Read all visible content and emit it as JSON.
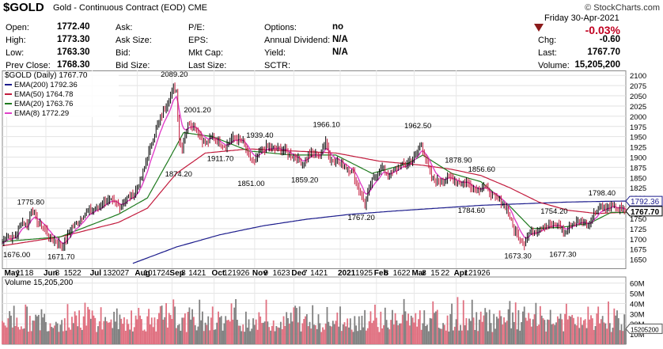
{
  "header": {
    "symbol": "$GOLD",
    "description": "Gold - Continuous Contract (EOD)",
    "exchange": "CME",
    "watermark": "© StockCharts.com",
    "quote_left": [
      {
        "label": "Open:",
        "value": "1772.40"
      },
      {
        "label": "High:",
        "value": "1773.30"
      },
      {
        "label": "Low:",
        "value": "1763.30"
      },
      {
        "label": "Prev Close:",
        "value": "1768.30"
      }
    ],
    "quote_mid": [
      {
        "label": "Ask:",
        "value": ""
      },
      {
        "label": "Ask Size:",
        "value": ""
      },
      {
        "label": "Bid:",
        "value": ""
      },
      {
        "label": "Bid Size:",
        "value": ""
      }
    ],
    "quote_mid2": [
      {
        "label": "P/E:",
        "value": ""
      },
      {
        "label": "EPS:",
        "value": ""
      },
      {
        "label": "Mkt Cap:",
        "value": ""
      },
      {
        "label": "Last Size:",
        "value": ""
      }
    ],
    "quote_right": [
      {
        "label": "Options:",
        "value": "no"
      },
      {
        "label": "Annual Dividend:",
        "value": "N/A"
      },
      {
        "label": "Yield:",
        "value": "N/A"
      },
      {
        "label": "SCTR:",
        "value": ""
      }
    ],
    "date": "Friday   30-Apr-2021",
    "change_pct": "-0.03%",
    "stats": [
      {
        "label": "Chg:",
        "value": "-0.60"
      },
      {
        "label": "Last:",
        "value": "1767.70"
      },
      {
        "label": "Volume:",
        "value": "15,205,200"
      }
    ],
    "colors": {
      "down": "#c00020",
      "down_arrow": "#8b1a1a"
    }
  },
  "chart_data": {
    "type": "line",
    "price_panel": {
      "title": "$GOLD (Daily) 1767.70",
      "legend": [
        {
          "name": "EMA(200) 1792.36",
          "color": "#1c1c8c"
        },
        {
          "name": "EMA(50) 1764.78",
          "color": "#c21a3c"
        },
        {
          "name": "EMA(20) 1763.76",
          "color": "#1e7a1e"
        },
        {
          "name": "EMA(8) 1772.29",
          "color": "#e040c8"
        }
      ],
      "ylim": [
        1628,
        2112
      ],
      "yticks": [
        "2100",
        "2075",
        "2050",
        "2025",
        "2000",
        "1975",
        "1950",
        "1925",
        "1900",
        "1875",
        "1850",
        "1825",
        "1800",
        "1775",
        "1750",
        "1725",
        "1700",
        "1675",
        "1650"
      ],
      "last_value_tags": [
        {
          "text": "1792.36",
          "value": 1792.36,
          "color": "#1c1c8c"
        },
        {
          "text": "1767.70",
          "value": 1767.7,
          "color": "#000000"
        }
      ],
      "annotations": [
        {
          "text": "1676.00",
          "x": 0,
          "value": 1676.0
        },
        {
          "text": "1775.80",
          "x": 20,
          "value": 1775.8
        },
        {
          "text": "1671.70",
          "x": 41,
          "value": 1671.7
        },
        {
          "text": "2089.20",
          "x": 119,
          "value": 2089.2
        },
        {
          "text": "1874.20",
          "x": 122,
          "value": 1874.2
        },
        {
          "text": "2001.20",
          "x": 135,
          "value": 2001.2
        },
        {
          "text": "1911.70",
          "x": 151,
          "value": 1911.7
        },
        {
          "text": "1939.40",
          "x": 178,
          "value": 1939.4
        },
        {
          "text": "1851.00",
          "x": 172,
          "value": 1851.0
        },
        {
          "text": "1859.20",
          "x": 209,
          "value": 1859.2
        },
        {
          "text": "1966.10",
          "x": 224,
          "value": 1966.1
        },
        {
          "text": "1767.20",
          "x": 248,
          "value": 1767.2
        },
        {
          "text": "1962.50",
          "x": 287,
          "value": 1962.5
        },
        {
          "text": "1878.90",
          "x": 315,
          "value": 1878.9
        },
        {
          "text": "1856.60",
          "x": 331,
          "value": 1856.6
        },
        {
          "text": "1784.60",
          "x": 324,
          "value": 1784.6
        },
        {
          "text": "1673.30",
          "x": 356,
          "value": 1673.3
        },
        {
          "text": "1754.20",
          "x": 381,
          "value": 1754.2
        },
        {
          "text": "1677.30",
          "x": 387,
          "value": 1677.3
        },
        {
          "text": "1798.40",
          "x": 414,
          "value": 1798.4
        }
      ],
      "anchors": [
        [
          0,
          1690
        ],
        [
          3,
          1710
        ],
        [
          7,
          1700
        ],
        [
          10,
          1712
        ],
        [
          13,
          1745
        ],
        [
          17,
          1730
        ],
        [
          20,
          1775
        ],
        [
          23,
          1750
        ],
        [
          26,
          1735
        ],
        [
          30,
          1720
        ],
        [
          33,
          1700
        ],
        [
          37,
          1695
        ],
        [
          41,
          1680
        ],
        [
          44,
          1700
        ],
        [
          48,
          1730
        ],
        [
          52,
          1740
        ],
        [
          56,
          1760
        ],
        [
          61,
          1770
        ],
        [
          66,
          1775
        ],
        [
          71,
          1795
        ],
        [
          76,
          1790
        ],
        [
          81,
          1780
        ],
        [
          86,
          1800
        ],
        [
          91,
          1810
        ],
        [
          96,
          1850
        ],
        [
          100,
          1900
        ],
        [
          104,
          1950
        ],
        [
          108,
          1985
        ],
        [
          112,
          2020
        ],
        [
          115,
          2040
        ],
        [
          118,
          2070
        ],
        [
          120,
          2062
        ],
        [
          122,
          1940
        ],
        [
          124,
          1925
        ],
        [
          126,
          1960
        ],
        [
          129,
          1985
        ],
        [
          133,
          1975
        ],
        [
          137,
          1945
        ],
        [
          141,
          1935
        ],
        [
          145,
          1950
        ],
        [
          150,
          1935
        ],
        [
          154,
          1925
        ],
        [
          158,
          1945
        ],
        [
          162,
          1945
        ],
        [
          166,
          1935
        ],
        [
          170,
          1900
        ],
        [
          174,
          1885
        ],
        [
          178,
          1915
        ],
        [
          182,
          1925
        ],
        [
          186,
          1920
        ],
        [
          190,
          1920
        ],
        [
          195,
          1915
        ],
        [
          199,
          1905
        ],
        [
          203,
          1895
        ],
        [
          207,
          1885
        ],
        [
          211,
          1905
        ],
        [
          215,
          1910
        ],
        [
          219,
          1900
        ],
        [
          223,
          1945
        ],
        [
          226,
          1890
        ],
        [
          230,
          1895
        ],
        [
          234,
          1880
        ],
        [
          238,
          1875
        ],
        [
          242,
          1860
        ],
        [
          246,
          1820
        ],
        [
          250,
          1785
        ],
        [
          254,
          1835
        ],
        [
          258,
          1860
        ],
        [
          262,
          1875
        ],
        [
          266,
          1855
        ],
        [
          270,
          1865
        ],
        [
          274,
          1880
        ],
        [
          278,
          1880
        ],
        [
          282,
          1895
        ],
        [
          286,
          1910
        ],
        [
          289,
          1935
        ],
        [
          292,
          1895
        ],
        [
          296,
          1850
        ],
        [
          300,
          1840
        ],
        [
          304,
          1845
        ],
        [
          308,
          1850
        ],
        [
          312,
          1845
        ],
        [
          316,
          1835
        ],
        [
          320,
          1840
        ],
        [
          324,
          1825
        ],
        [
          328,
          1820
        ],
        [
          332,
          1830
        ],
        [
          336,
          1810
        ],
        [
          340,
          1800
        ],
        [
          344,
          1790
        ],
        [
          348,
          1775
        ],
        [
          352,
          1730
        ],
        [
          356,
          1705
        ],
        [
          360,
          1690
        ],
        [
          364,
          1720
        ],
        [
          368,
          1720
        ],
        [
          372,
          1730
        ],
        [
          376,
          1735
        ],
        [
          380,
          1730
        ],
        [
          384,
          1735
        ],
        [
          388,
          1715
        ],
        [
          392,
          1735
        ],
        [
          396,
          1740
        ],
        [
          400,
          1745
        ],
        [
          404,
          1735
        ],
        [
          408,
          1760
        ],
        [
          412,
          1780
        ],
        [
          416,
          1775
        ],
        [
          420,
          1780
        ],
        [
          424,
          1775
        ],
        [
          428,
          1770
        ],
        [
          430,
          1768
        ]
      ],
      "ema_series": [
        {
          "name": "EMA(200)",
          "points": [
            [
              90,
              1640
            ],
            [
              120,
              1680
            ],
            [
              150,
              1710
            ],
            [
              180,
              1732
            ],
            [
              210,
              1748
            ],
            [
              240,
              1760
            ],
            [
              270,
              1768
            ],
            [
              300,
              1775
            ],
            [
              330,
              1782
            ],
            [
              360,
              1786
            ],
            [
              390,
              1790
            ],
            [
              420,
              1792
            ],
            [
              430,
              1792.4
            ]
          ]
        },
        {
          "name": "EMA(50)",
          "points": [
            [
              0,
              1683
            ],
            [
              40,
              1705
            ],
            [
              80,
              1740
            ],
            [
              100,
              1775
            ],
            [
              120,
              1860
            ],
            [
              140,
              1910
            ],
            [
              170,
              1920
            ],
            [
              200,
              1915
            ],
            [
              230,
              1910
            ],
            [
              260,
              1890
            ],
            [
              290,
              1880
            ],
            [
              310,
              1870
            ],
            [
              330,
              1855
            ],
            [
              350,
              1825
            ],
            [
              370,
              1790
            ],
            [
              390,
              1770
            ],
            [
              410,
              1762
            ],
            [
              430,
              1765
            ]
          ]
        },
        {
          "name": "EMA(20)",
          "points": [
            [
              0,
              1693
            ],
            [
              40,
              1705
            ],
            [
              80,
              1760
            ],
            [
              100,
              1800
            ],
            [
              115,
              1895
            ],
            [
              125,
              1960
            ],
            [
              145,
              1950
            ],
            [
              170,
              1915
            ],
            [
              200,
              1905
            ],
            [
              230,
              1905
            ],
            [
              255,
              1860
            ],
            [
              280,
              1885
            ],
            [
              290,
              1905
            ],
            [
              310,
              1860
            ],
            [
              330,
              1840
            ],
            [
              350,
              1780
            ],
            [
              365,
              1725
            ],
            [
              385,
              1728
            ],
            [
              405,
              1738
            ],
            [
              420,
              1765
            ],
            [
              430,
              1764
            ]
          ]
        }
      ]
    },
    "x_axis": {
      "count": 431,
      "labels": [
        {
          "text": "May",
          "x": 3,
          "bold": true
        },
        {
          "text": "11",
          "x": 11
        },
        {
          "text": "18",
          "x": 17
        },
        {
          "text": "Jun",
          "x": 30,
          "bold": true
        },
        {
          "text": "8",
          "x": 38
        },
        {
          "text": "15",
          "x": 44
        },
        {
          "text": "22",
          "x": 50
        },
        {
          "text": "Jul",
          "x": 62,
          "bold": true
        },
        {
          "text": "13",
          "x": 71
        },
        {
          "text": "20",
          "x": 77
        },
        {
          "text": "27",
          "x": 83
        },
        {
          "text": "Aug",
          "x": 93,
          "bold": true
        },
        {
          "text": "10",
          "x": 99
        },
        {
          "text": "17",
          "x": 105
        },
        {
          "text": "24",
          "x": 111
        },
        {
          "text": "Sep",
          "x": 117,
          "bold": true
        },
        {
          "text": "8",
          "x": 125
        },
        {
          "text": "14",
          "x": 130
        },
        {
          "text": "21",
          "x": 136
        },
        {
          "text": "Oct",
          "x": 146,
          "bold": true
        },
        {
          "text": "12",
          "x": 154
        },
        {
          "text": "19",
          "x": 160
        },
        {
          "text": "26",
          "x": 166
        },
        {
          "text": "Nov",
          "x": 174,
          "bold": true
        },
        {
          "text": "9",
          "x": 182
        },
        {
          "text": "16",
          "x": 188
        },
        {
          "text": "23",
          "x": 194
        },
        {
          "text": "Dec",
          "x": 201,
          "bold": true
        },
        {
          "text": "7",
          "x": 209
        },
        {
          "text": "14",
          "x": 214
        },
        {
          "text": "21",
          "x": 220
        },
        {
          "text": "2021",
          "x": 233,
          "bold": true
        },
        {
          "text": "19",
          "x": 245
        },
        {
          "text": "25",
          "x": 251
        },
        {
          "text": "Feb",
          "x": 258,
          "bold": true
        },
        {
          "text": "8",
          "x": 265
        },
        {
          "text": "16",
          "x": 271
        },
        {
          "text": "22",
          "x": 277
        },
        {
          "text": "Mar",
          "x": 284,
          "bold": true
        },
        {
          "text": "8",
          "x": 291
        },
        {
          "text": "15",
          "x": 297
        },
        {
          "text": "22",
          "x": 304
        },
        {
          "text": "Apr",
          "x": 313,
          "bold": true
        },
        {
          "text": "12",
          "x": 320
        },
        {
          "text": "19",
          "x": 326
        },
        {
          "text": "26",
          "x": 332
        }
      ]
    },
    "volume_panel": {
      "title": "Volume 15,205,200",
      "ylim": [
        0,
        66
      ],
      "yticks": [
        "60M",
        "50M",
        "40M",
        "30M",
        "20M",
        "10M"
      ],
      "last_value_tag": "15205200",
      "up_color": "#e07080",
      "down_color": "#808080",
      "range": [
        12,
        48
      ]
    }
  }
}
